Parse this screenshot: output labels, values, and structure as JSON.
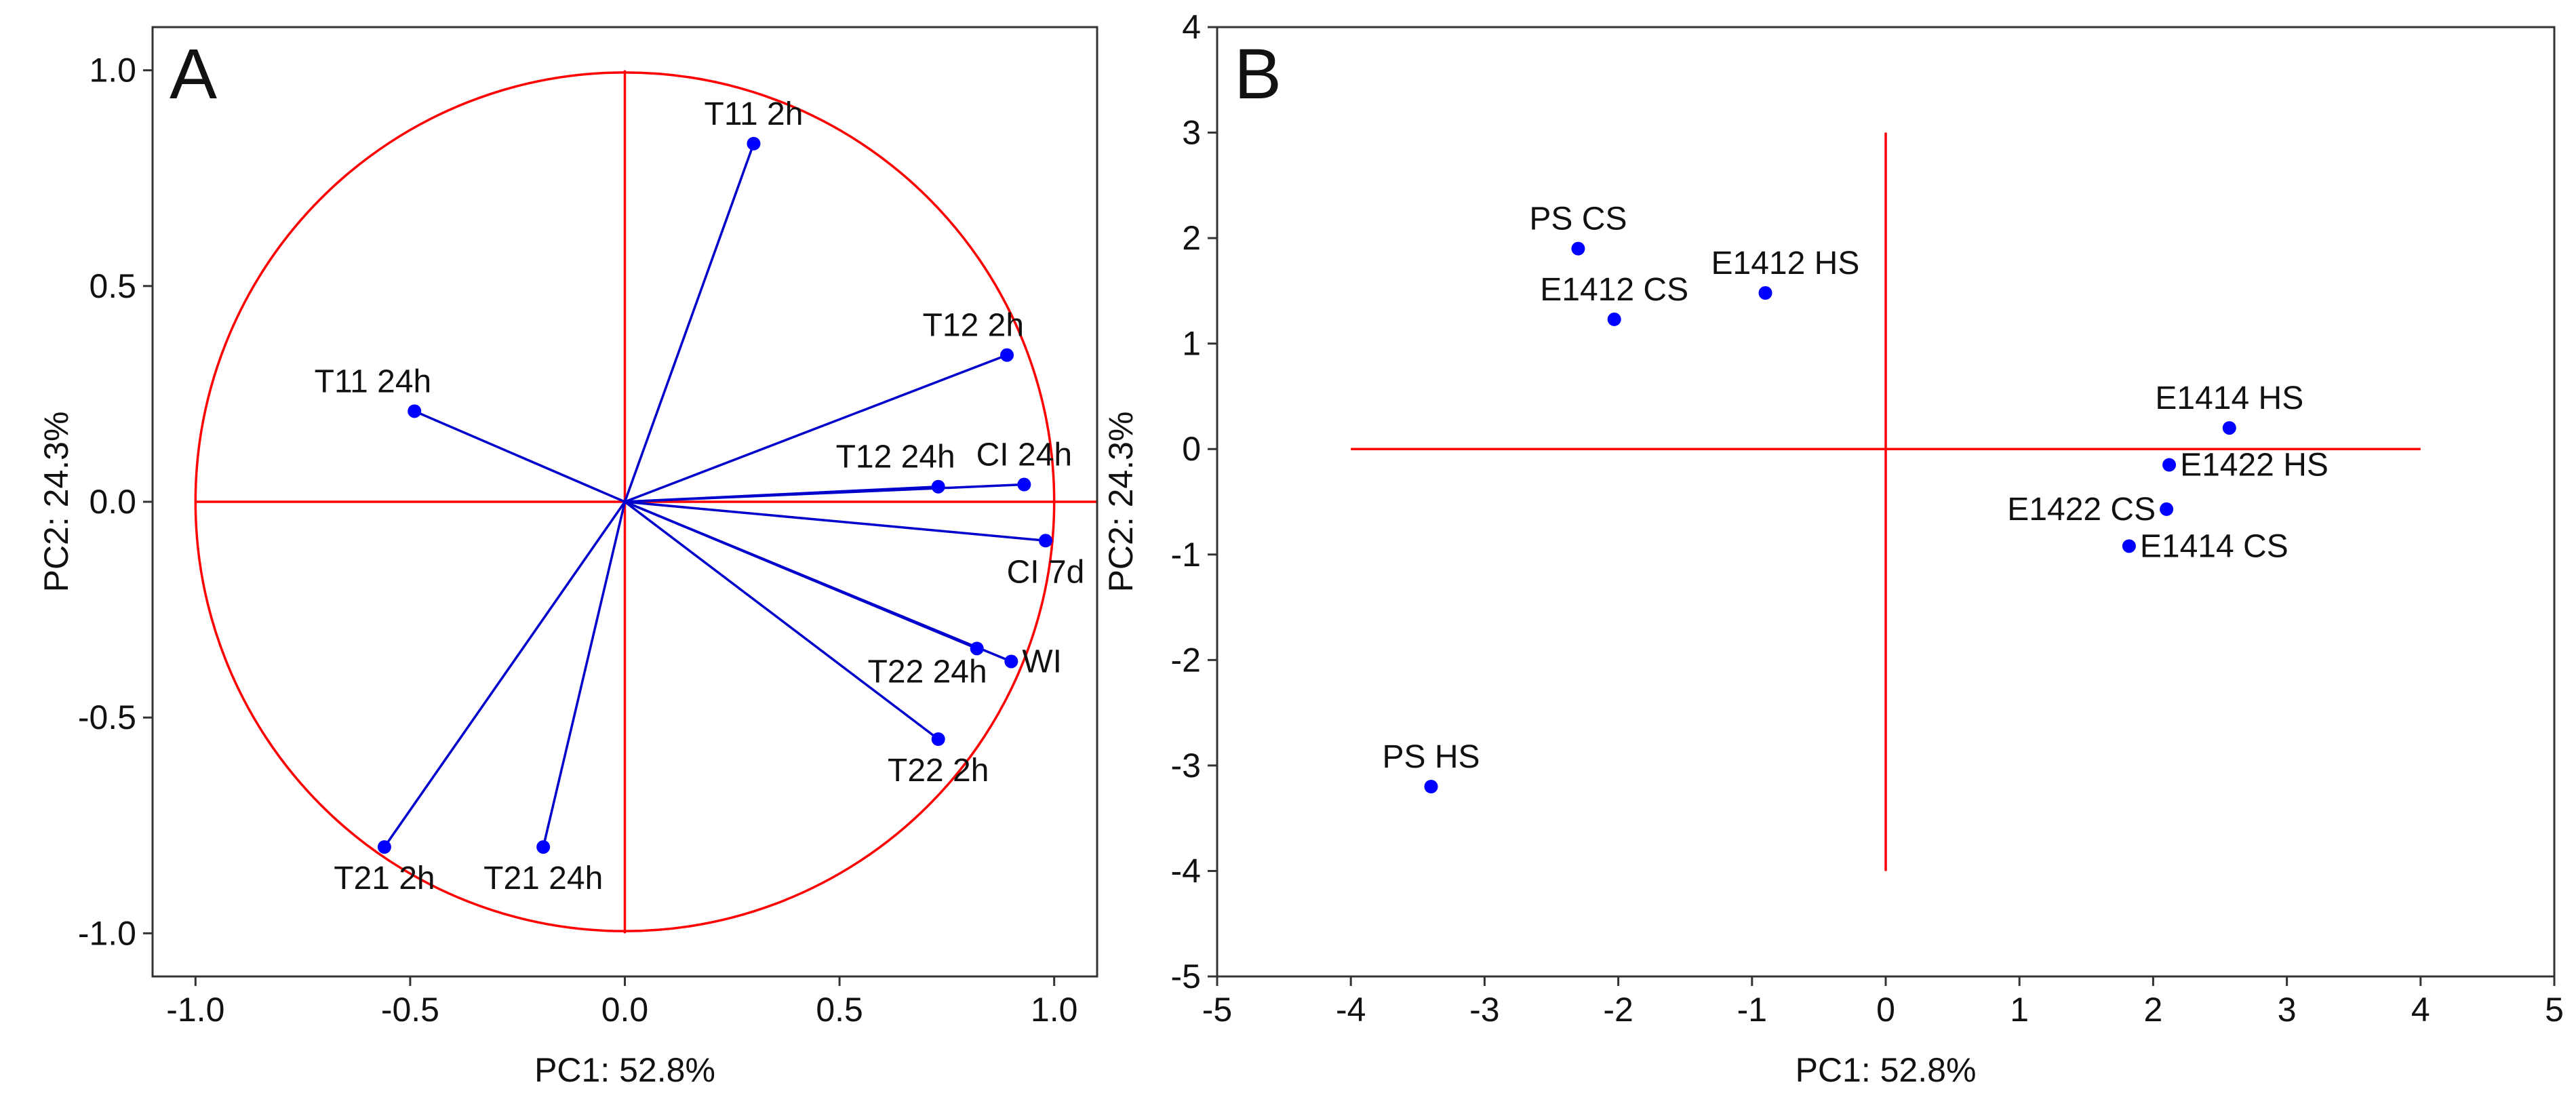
{
  "colors": {
    "vector": "#0000cc",
    "point": "#0000ff",
    "reference": "#ff0000",
    "frame": "#333333"
  },
  "chart_data": [
    {
      "type": "scatter",
      "subtype": "pca-loading-plot",
      "panel_label": "A",
      "xlabel": "PC1: 52.8%",
      "ylabel": "PC2: 24.3%",
      "xlim": [
        -1.1,
        1.1
      ],
      "ylim": [
        -1.1,
        1.1
      ],
      "xticks": [
        -1.0,
        -0.5,
        0.0,
        0.5,
        1.0
      ],
      "xtick_labels": [
        "-1.0",
        "-0.5",
        "0.0",
        "0.5",
        "1.0"
      ],
      "yticks": [
        -1.0,
        -0.5,
        0.0,
        0.5,
        1.0
      ],
      "ytick_labels": [
        "-1.0",
        "-0.5",
        "0.0",
        "0.5",
        "1.0"
      ],
      "unit_circle_radius": 1.0,
      "points": [
        {
          "label": "T11 2h",
          "x": 0.3,
          "y": 0.83,
          "label_pos": "above"
        },
        {
          "label": "T12 2h",
          "x": 0.89,
          "y": 0.34,
          "label_pos": "above-left"
        },
        {
          "label": "T11 24h",
          "x": -0.49,
          "y": 0.21,
          "label_pos": "above-left"
        },
        {
          "label": "T12 24h",
          "x": 0.73,
          "y": 0.035,
          "label_pos": "above-left"
        },
        {
          "label": "CI 24h",
          "x": 0.93,
          "y": 0.04,
          "label_pos": "above"
        },
        {
          "label": "CI 7d",
          "x": 0.98,
          "y": -0.09,
          "label_pos": "below"
        },
        {
          "label": "T22 24h",
          "x": 0.82,
          "y": -0.34,
          "label_pos": "below-left"
        },
        {
          "label": "WI",
          "x": 0.9,
          "y": -0.37,
          "label_pos": "right"
        },
        {
          "label": "T22 2h",
          "x": 0.73,
          "y": -0.55,
          "label_pos": "below"
        },
        {
          "label": "T21 2h",
          "x": -0.56,
          "y": -0.8,
          "label_pos": "below"
        },
        {
          "label": "T21 24h",
          "x": -0.19,
          "y": -0.8,
          "label_pos": "below"
        }
      ]
    },
    {
      "type": "scatter",
      "subtype": "pca-score-plot",
      "panel_label": "B",
      "xlabel": "PC1: 52.8%",
      "ylabel": "PC2: 24.3%",
      "xlim": [
        -5,
        5
      ],
      "ylim": [
        -5,
        4
      ],
      "xticks": [
        -5,
        -4,
        -3,
        -2,
        -1,
        0,
        1,
        2,
        3,
        4,
        5
      ],
      "xtick_labels": [
        "-5",
        "-4",
        "-3",
        "-2",
        "-1",
        "0",
        "1",
        "2",
        "3",
        "4",
        "5"
      ],
      "yticks": [
        -5,
        -4,
        -3,
        -2,
        -1,
        0,
        1,
        2,
        3,
        4
      ],
      "ytick_labels": [
        "-5",
        "-4",
        "-3",
        "-2",
        "-1",
        "0",
        "1",
        "2",
        "3",
        "4"
      ],
      "reference_lines": {
        "horizontal_x_range": [
          -4,
          4
        ],
        "vertical_y_range": [
          -4,
          3
        ]
      },
      "points": [
        {
          "label": "PS CS",
          "x": -2.3,
          "y": 1.9,
          "label_pos": "above"
        },
        {
          "label": "E1412 CS",
          "x": -2.03,
          "y": 1.23,
          "label_pos": "above"
        },
        {
          "label": "E1412 HS",
          "x": -0.9,
          "y": 1.48,
          "label_pos": "above-right"
        },
        {
          "label": "E1414 HS",
          "x": 2.57,
          "y": 0.2,
          "label_pos": "above"
        },
        {
          "label": "E1422 HS",
          "x": 2.12,
          "y": -0.15,
          "label_pos": "right"
        },
        {
          "label": "E1422 CS",
          "x": 2.1,
          "y": -0.57,
          "label_pos": "left"
        },
        {
          "label": "E1414 CS",
          "x": 1.82,
          "y": -0.92,
          "label_pos": "right"
        },
        {
          "label": "PS HS",
          "x": -3.4,
          "y": -3.2,
          "label_pos": "above"
        }
      ]
    }
  ]
}
